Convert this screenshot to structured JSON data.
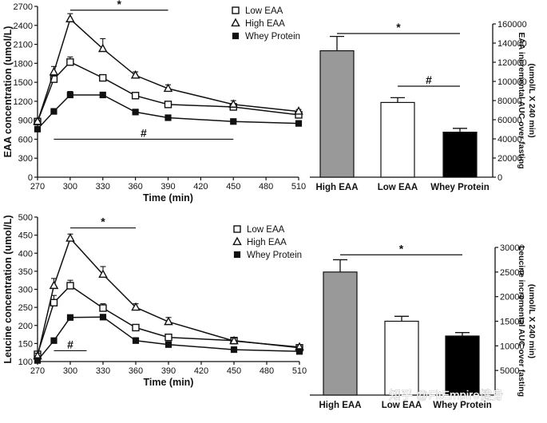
{
  "chart_data": [
    {
      "id": "eaa-line",
      "type": "line",
      "title": "",
      "xlabel": "Time (min)",
      "ylabel": "EAA concentration (umol/L)",
      "x": [
        270,
        285,
        300,
        330,
        360,
        390,
        450,
        510
      ],
      "xlim": [
        270,
        510
      ],
      "xticks": [
        270,
        300,
        330,
        360,
        390,
        420,
        450,
        480,
        510
      ],
      "ylim": [
        0,
        2700
      ],
      "yticks": [
        0,
        300,
        600,
        900,
        1200,
        1500,
        1800,
        2100,
        2400,
        2700
      ],
      "grid": false,
      "legend": "top-center",
      "series": [
        {
          "name": "Low EAA",
          "marker": "square-open",
          "x": [
            270,
            285,
            300,
            330,
            360,
            390,
            450,
            510
          ],
          "values": [
            880,
            1550,
            1820,
            1570,
            1290,
            1150,
            1110,
            985
          ],
          "errors": [
            25,
            70,
            80,
            45,
            35,
            30,
            55,
            40
          ]
        },
        {
          "name": "High EAA",
          "marker": "triangle-open",
          "x": [
            270,
            285,
            300,
            330,
            360,
            390,
            450,
            510
          ],
          "values": [
            880,
            1660,
            2500,
            2030,
            1610,
            1400,
            1150,
            1040
          ],
          "errors": [
            25,
            90,
            85,
            160,
            55,
            60,
            60,
            30
          ]
        },
        {
          "name": "Whey Protein",
          "marker": "square-filled",
          "x": [
            270,
            285,
            300,
            330,
            360,
            390,
            450,
            510
          ],
          "values": [
            760,
            1040,
            1300,
            1300,
            1030,
            940,
            880,
            850
          ],
          "errors": [
            25,
            40,
            55,
            30,
            30,
            25,
            20,
            20
          ]
        }
      ],
      "annotations": [
        {
          "text": "*",
          "x_range": [
            300,
            390
          ],
          "y": 2640
        },
        {
          "text": "#",
          "x_range": [
            285,
            450
          ],
          "y": 600
        }
      ]
    },
    {
      "id": "eaa-auc",
      "type": "bar",
      "title": "",
      "xlabel": "",
      "ylabel": "EAA incremental AUC over fasting (umol/L X 240 min)",
      "categories": [
        "High EAA",
        "Low EAA",
        "Whey Protein"
      ],
      "values": [
        132000,
        78000,
        47000
      ],
      "errors": [
        15000,
        5000,
        4000
      ],
      "fill": [
        "#999999",
        "#ffffff",
        "#000000"
      ],
      "ylim": [
        0,
        160000
      ],
      "yticks": [
        0,
        20000,
        40000,
        60000,
        80000,
        100000,
        120000,
        140000,
        160000
      ],
      "annotations": [
        {
          "text": "*",
          "between": [
            "High EAA",
            "Whey Protein"
          ],
          "y": 150000
        },
        {
          "text": "#",
          "between": [
            "Low EAA",
            "Whey Protein"
          ],
          "y": 95000
        }
      ]
    },
    {
      "id": "leu-line",
      "type": "line",
      "title": "",
      "xlabel": "Time (min)",
      "ylabel": "Leucine concentration (umol/L)",
      "x": [
        270,
        285,
        300,
        330,
        360,
        390,
        450,
        510
      ],
      "xlim": [
        270,
        510
      ],
      "xticks": [
        270,
        300,
        330,
        360,
        390,
        420,
        450,
        480,
        510
      ],
      "ylim": [
        100,
        500
      ],
      "yticks": [
        100,
        150,
        200,
        250,
        300,
        350,
        400,
        450,
        500
      ],
      "grid": false,
      "legend": "top-center",
      "series": [
        {
          "name": "Low EAA",
          "marker": "square-open",
          "x": [
            270,
            285,
            300,
            330,
            360,
            390,
            450,
            510
          ],
          "values": [
            120,
            263,
            310,
            248,
            194,
            167,
            158,
            138
          ],
          "errors": [
            8,
            20,
            15,
            12,
            8,
            8,
            8,
            8
          ]
        },
        {
          "name": "High EAA",
          "marker": "triangle-open",
          "x": [
            270,
            285,
            300,
            330,
            360,
            390,
            450,
            510
          ],
          "values": [
            115,
            310,
            441,
            341,
            250,
            210,
            157,
            140
          ],
          "errors": [
            8,
            20,
            12,
            22,
            10,
            12,
            8,
            6
          ]
        },
        {
          "name": "Whey Protein",
          "marker": "square-filled",
          "x": [
            270,
            285,
            300,
            330,
            360,
            390,
            450,
            510
          ],
          "values": [
            103,
            158,
            222,
            223,
            158,
            147,
            133,
            128
          ],
          "errors": [
            5,
            6,
            6,
            5,
            8,
            6,
            5,
            5
          ]
        }
      ],
      "annotations": [
        {
          "text": "*",
          "x_range": [
            300,
            360
          ],
          "y": 470
        },
        {
          "text": "#",
          "x_range": [
            285,
            315
          ],
          "y": 130
        }
      ]
    },
    {
      "id": "leu-auc",
      "type": "bar",
      "title": "",
      "xlabel": "",
      "ylabel": "Leucine incremental AUC over fasting (umol/L X 240 min)",
      "categories": [
        "High EAA",
        "Low EAA",
        "Whey Protein"
      ],
      "values": [
        25000,
        15000,
        12000
      ],
      "errors": [
        2500,
        1000,
        700
      ],
      "fill": [
        "#999999",
        "#ffffff",
        "#000000"
      ],
      "ylim": [
        0,
        30000
      ],
      "yticks": [
        5000,
        10000,
        15000,
        20000,
        25000,
        30000
      ],
      "annotations": [
        {
          "text": "*",
          "between": [
            "High EAA",
            "Whey Protein"
          ],
          "y": 28500
        }
      ]
    }
  ],
  "watermark": "知乎 @FitEmpire健身"
}
